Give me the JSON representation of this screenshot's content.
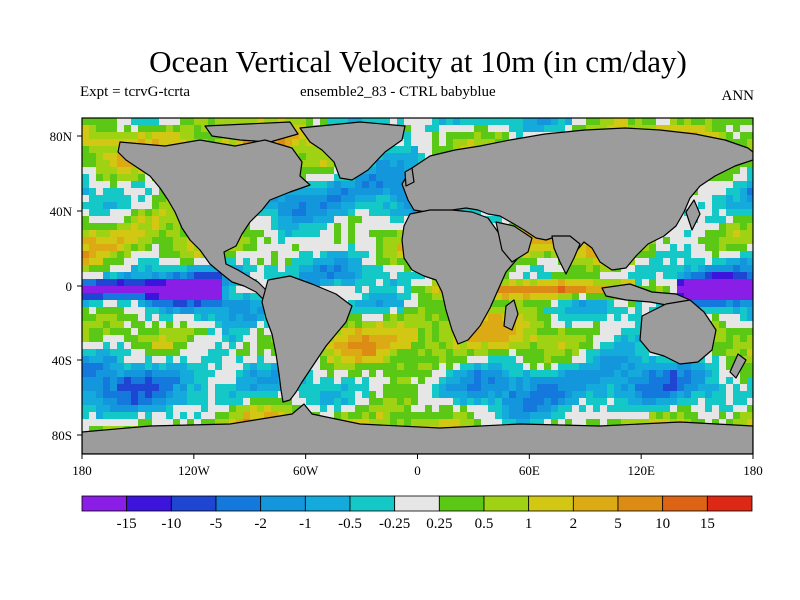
{
  "title": "Ocean Vertical Velocity at 10m (in cm/day)",
  "subtitle_left": "Expt = tcrvG-tcrta",
  "subtitle_center": "ensemble2_83 - CTRL babyblue",
  "season": "ANN",
  "land_color": "#9c9c9c",
  "map": {
    "lat_ticks": [
      "80N",
      "40N",
      "0",
      "40S",
      "80S"
    ],
    "lon_ticks": [
      "180",
      "120W",
      "60W",
      "0",
      "60E",
      "120E",
      "180"
    ]
  },
  "colorbar": {
    "colors": [
      "#8a1ee6",
      "#3c14dc",
      "#1e46d2",
      "#1478dc",
      "#1496dc",
      "#14aadc",
      "#14c8c8",
      "#e6e6e6",
      "#5ac814",
      "#a0d214",
      "#d2c814",
      "#dcaa14",
      "#dc8c14",
      "#dc6414",
      "#dc2814"
    ],
    "labels": [
      "-15",
      "-10",
      "-5",
      "-2",
      "-1",
      "-0.5",
      "-0.25",
      "0.25",
      "0.5",
      "1",
      "2",
      "5",
      "10",
      "15"
    ]
  }
}
